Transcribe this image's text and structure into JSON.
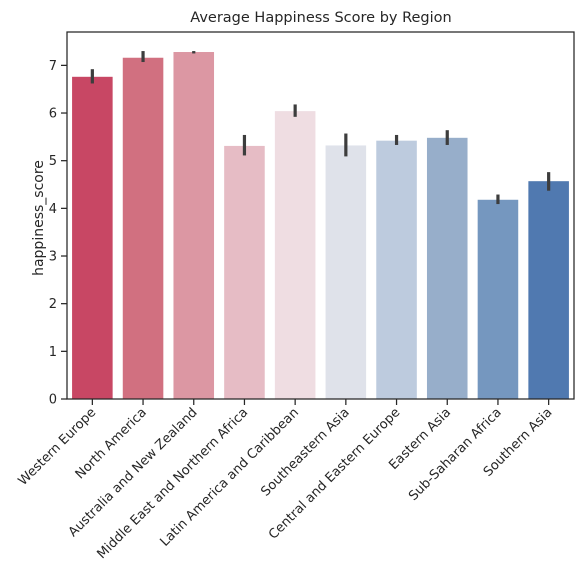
{
  "chart_data": {
    "type": "bar",
    "title": "Average Happiness Score by Region",
    "xlabel": "",
    "ylabel": "happiness_score",
    "ylim": [
      0,
      7.7
    ],
    "yticks": [
      0,
      1,
      2,
      3,
      4,
      5,
      6,
      7
    ],
    "grid": false,
    "categories": [
      "Western Europe",
      "North America",
      "Australia and New Zealand",
      "Middle East and Northern Africa",
      "Latin America and Caribbean",
      "Southeastern Asia",
      "Central and Eastern Europe",
      "Eastern Asia",
      "Sub-Saharan Africa",
      "Southern Asia"
    ],
    "values": [
      6.76,
      7.16,
      7.28,
      5.31,
      6.04,
      5.32,
      5.42,
      5.48,
      4.18,
      4.57
    ],
    "error_low": [
      6.62,
      7.07,
      7.25,
      5.11,
      5.92,
      5.09,
      5.33,
      5.33,
      4.09,
      4.37
    ],
    "error_high": [
      6.92,
      7.3,
      7.3,
      5.54,
      6.18,
      5.57,
      5.54,
      5.64,
      4.29,
      4.76
    ],
    "colors": [
      "#c84764",
      "#d17080",
      "#dc97a3",
      "#e6bcc5",
      "#efdde2",
      "#dfe2ea",
      "#bdcbde",
      "#97aeca",
      "#7597bf",
      "#5079b0"
    ]
  }
}
